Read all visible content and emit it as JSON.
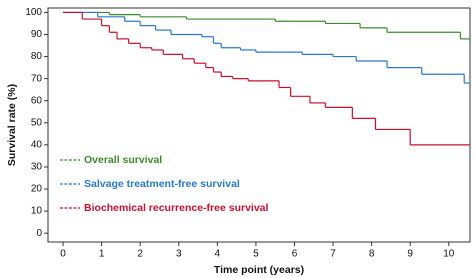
{
  "chart_data": {
    "type": "step",
    "x_label": "Time point (years)",
    "y_label": "Survival rate (%)",
    "xlim": [
      -0.39,
      10.55
    ],
    "ylim": [
      -4,
      102
    ],
    "xticks": [
      0,
      1,
      2,
      3,
      4,
      5,
      6,
      7,
      8,
      9,
      10
    ],
    "yticks": [
      0,
      10,
      20,
      30,
      40,
      50,
      60,
      70,
      80,
      90,
      100
    ],
    "legend": "lower left",
    "series": [
      {
        "name": "Overall survival",
        "color": "#3c8c2c",
        "x": [
          0,
          1.2,
          2.0,
          3.2,
          5.5,
          6.8,
          7.7,
          8.4,
          10.3,
          10.55
        ],
        "values": [
          100,
          99,
          98,
          97,
          96,
          95,
          93,
          91,
          88,
          88
        ]
      },
      {
        "name": "Salvage treatment-free survival",
        "color": "#2a78c8",
        "x": [
          0,
          0.9,
          1.6,
          2.0,
          2.4,
          2.8,
          3.6,
          3.9,
          4.1,
          4.6,
          5.0,
          6.2,
          7.0,
          7.6,
          8.4,
          9.3,
          10.4,
          10.55
        ],
        "values": [
          100,
          98,
          96,
          94,
          92,
          90,
          89,
          86,
          84,
          83,
          82,
          81,
          80,
          78,
          75,
          72,
          68,
          68
        ]
      },
      {
        "name": "Biochemical recurrence-free survival",
        "color": "#c8102e",
        "x": [
          0,
          0.5,
          1.0,
          1.2,
          1.4,
          1.7,
          2.0,
          2.3,
          2.6,
          3.1,
          3.4,
          3.7,
          3.9,
          4.1,
          4.4,
          4.8,
          5.6,
          5.9,
          6.4,
          6.8,
          7.5,
          8.1,
          9.0,
          10.55
        ],
        "values": [
          100,
          97,
          94,
          91,
          88,
          86,
          84,
          83,
          81,
          79,
          77,
          75,
          73,
          71,
          70,
          69,
          66,
          62,
          59,
          57,
          52,
          47,
          40,
          40
        ]
      }
    ]
  }
}
